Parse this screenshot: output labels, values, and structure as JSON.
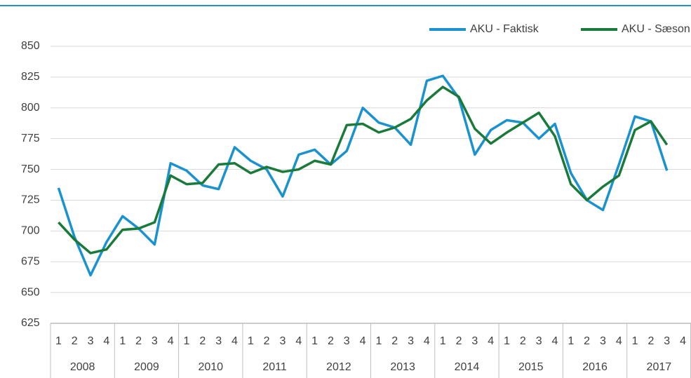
{
  "chart_data": {
    "type": "line",
    "categories": [
      "1",
      "2",
      "3",
      "4",
      "1",
      "2",
      "3",
      "4",
      "1",
      "2",
      "3",
      "4",
      "1",
      "2",
      "3",
      "4",
      "1",
      "2",
      "3",
      "4",
      "1",
      "2",
      "3",
      "4",
      "1",
      "2",
      "3",
      "4",
      "1",
      "2",
      "3",
      "4",
      "1",
      "2",
      "3",
      "4",
      "1",
      "2",
      "3",
      "4"
    ],
    "groups": [
      "2008",
      "2009",
      "2010",
      "2011",
      "2012",
      "2013",
      "2014",
      "2015",
      "2016",
      "2017"
    ],
    "series": [
      {
        "name": "AKU - Faktisk",
        "color": "#1b92d0",
        "values": [
          735,
          695,
          664,
          691,
          712,
          702,
          689,
          755,
          749,
          737,
          734,
          768,
          757,
          750,
          728,
          762,
          766,
          754,
          765,
          800,
          788,
          784,
          770,
          822,
          826,
          808,
          762,
          782,
          790,
          788,
          775,
          787,
          747,
          725,
          717,
          754,
          793,
          789,
          749,
          null
        ]
      },
      {
        "name": "AKU - Sæson",
        "color": "#1a7a3a",
        "values": [
          707,
          693,
          682,
          685,
          701,
          702,
          707,
          745,
          738,
          739,
          754,
          755,
          747,
          752,
          748,
          750,
          757,
          754,
          786,
          787,
          780,
          784,
          791,
          806,
          817,
          809,
          783,
          771,
          780,
          788,
          796,
          777,
          738,
          725,
          736,
          745,
          782,
          789,
          770,
          null
        ]
      }
    ],
    "ylim": [
      625,
      850
    ],
    "yticks": [
      625,
      650,
      675,
      700,
      725,
      750,
      775,
      800,
      825,
      850
    ],
    "grid": true,
    "legend": "top-right"
  }
}
